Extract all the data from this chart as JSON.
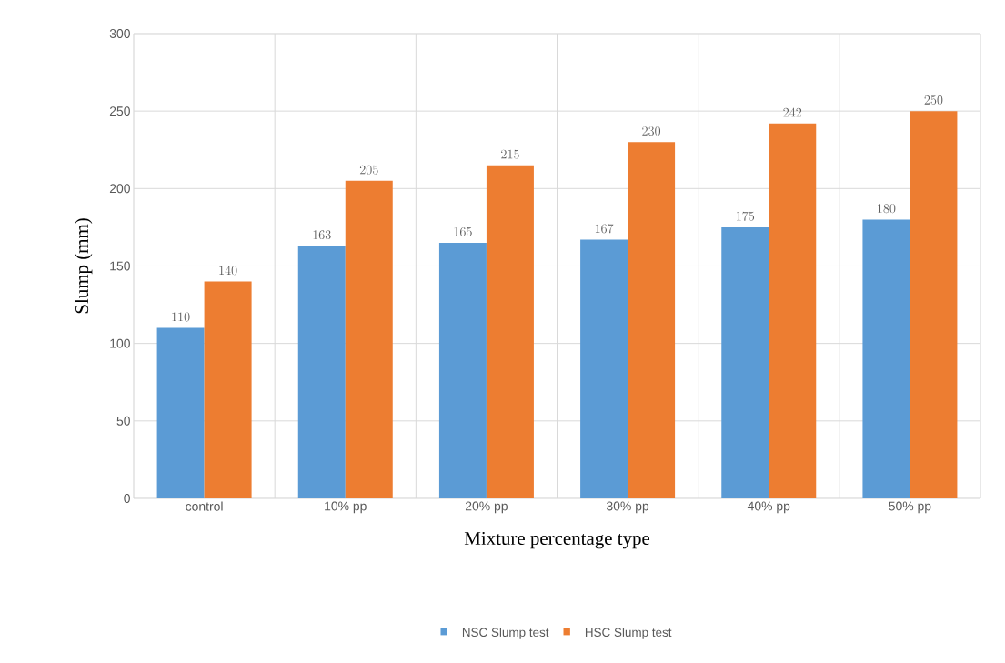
{
  "chart_data": {
    "type": "bar",
    "xlabel": "Mixture percentage type",
    "ylabel": "Slump (mm)",
    "categories": [
      "control",
      "10% pp",
      "20% pp",
      "30% pp",
      "40% pp",
      "50% pp"
    ],
    "series": [
      {
        "name": "NSC Slump test",
        "color": "#5b9bd5",
        "values": [
          110,
          163,
          165,
          167,
          175,
          180
        ]
      },
      {
        "name": "HSC Slump test",
        "color": "#ed7d31",
        "values": [
          140,
          205,
          215,
          230,
          242,
          250
        ]
      }
    ],
    "ylim": [
      0,
      300
    ],
    "yticks": [
      0,
      50,
      100,
      150,
      200,
      250,
      300
    ],
    "grid": true,
    "legend": "bottom",
    "data_labels": true
  }
}
